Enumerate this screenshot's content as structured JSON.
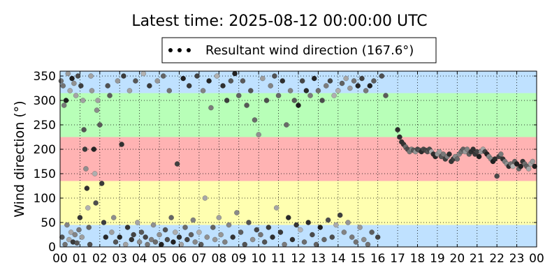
{
  "chart_data": {
    "type": "scatter",
    "title": "Latest time: 2025-08-12 00:00:00 UTC",
    "xlabel": "",
    "ylabel": "Wind direction (°)",
    "x_unit": "hour UTC",
    "xlim": [
      0,
      24
    ],
    "ylim": [
      0,
      360
    ],
    "x_tick_labels": [
      "00",
      "01",
      "02",
      "03",
      "04",
      "05",
      "06",
      "07",
      "08",
      "09",
      "10",
      "11",
      "12",
      "13",
      "14",
      "15",
      "16",
      "17",
      "18",
      "19",
      "20",
      "21",
      "22",
      "23",
      "00"
    ],
    "y_ticks": [
      0,
      50,
      100,
      150,
      200,
      250,
      300,
      350
    ],
    "grid": true,
    "grid_style": "dotted",
    "legend": {
      "label": "Resultant wind direction (167.6°)",
      "placement": "top-center, above plot"
    },
    "direction_bands": [
      {
        "from": 0,
        "to": 45,
        "color": "#bfe1ff"
      },
      {
        "from": 45,
        "to": 135,
        "color": "#ffffb0"
      },
      {
        "from": 135,
        "to": 225,
        "color": "#ffb3b3"
      },
      {
        "from": 225,
        "to": 315,
        "color": "#b8ffb8"
      },
      {
        "from": 315,
        "to": 360,
        "color": "#bfe1ff"
      }
    ],
    "series": [
      {
        "marker_color_range": [
          "#1a1a1a",
          "#b3b3b3"
        ],
        "points": [
          [
            0.05,
            340
          ],
          [
            0.1,
            20
          ],
          [
            0.15,
            330
          ],
          [
            0.2,
            290
          ],
          [
            0.25,
            5
          ],
          [
            0.3,
            300
          ],
          [
            0.35,
            45
          ],
          [
            0.4,
            355
          ],
          [
            0.45,
            15
          ],
          [
            0.5,
            320
          ],
          [
            0.55,
            30
          ],
          [
            0.6,
            345
          ],
          [
            0.65,
            10
          ],
          [
            0.7,
            335
          ],
          [
            0.75,
            25
          ],
          [
            0.8,
            310
          ],
          [
            0.85,
            8
          ],
          [
            0.9,
            350
          ],
          [
            0.95,
            35
          ],
          [
            1.0,
            60
          ],
          [
            1.05,
            330
          ],
          [
            1.1,
            20
          ],
          [
            1.15,
            300
          ],
          [
            1.2,
            240
          ],
          [
            1.25,
            200
          ],
          [
            1.3,
            160
          ],
          [
            1.35,
            120
          ],
          [
            1.4,
            80
          ],
          [
            1.45,
            40
          ],
          [
            1.5,
            5
          ],
          [
            1.55,
            350
          ],
          [
            1.6,
            320
          ],
          [
            1.7,
            200
          ],
          [
            1.75,
            150
          ],
          [
            1.8,
            90
          ],
          [
            1.85,
            280
          ],
          [
            1.9,
            300
          ],
          [
            2.0,
            250
          ],
          [
            2.1,
            130
          ],
          [
            2.2,
            50
          ],
          [
            2.3,
            20
          ],
          [
            2.4,
            330
          ],
          [
            2.5,
            310
          ],
          [
            2.6,
            30
          ],
          [
            2.7,
            60
          ],
          [
            2.8,
            10
          ],
          [
            2.9,
            340
          ],
          [
            3.0,
            20
          ],
          [
            3.1,
            210
          ],
          [
            3.2,
            350
          ],
          [
            3.3,
            5
          ],
          [
            3.4,
            40
          ],
          [
            3.5,
            320
          ],
          [
            3.6,
            15
          ],
          [
            3.7,
            25
          ],
          [
            3.8,
            340
          ],
          [
            3.9,
            50
          ],
          [
            4.0,
            10
          ],
          [
            4.1,
            30
          ],
          [
            4.2,
            355
          ],
          [
            4.3,
            20
          ],
          [
            4.4,
            5
          ],
          [
            4.5,
            330
          ],
          [
            4.6,
            15
          ],
          [
            4.7,
            45
          ],
          [
            4.8,
            10
          ],
          [
            4.9,
            340
          ],
          [
            5.0,
            25
          ],
          [
            5.1,
            5
          ],
          [
            5.2,
            350
          ],
          [
            5.3,
            35
          ],
          [
            5.4,
            15
          ],
          [
            5.5,
            320
          ],
          [
            5.6,
            60
          ],
          [
            5.7,
            10
          ],
          [
            5.8,
            30
          ],
          [
            5.9,
            170
          ],
          [
            6.0,
            20
          ],
          [
            6.1,
            5
          ],
          [
            6.2,
            345
          ],
          [
            6.3,
            40
          ],
          [
            6.4,
            15
          ],
          [
            6.5,
            330
          ],
          [
            6.6,
            25
          ],
          [
            6.7,
            55
          ],
          [
            6.8,
            10
          ],
          [
            6.9,
            350
          ],
          [
            7.0,
            30
          ],
          [
            7.1,
            5
          ],
          [
            7.2,
            320
          ],
          [
            7.3,
            100
          ],
          [
            7.4,
            20
          ],
          [
            7.5,
            340
          ],
          [
            7.6,
            285
          ],
          [
            7.7,
            40
          ],
          [
            7.8,
            15
          ],
          [
            7.9,
            350
          ],
          [
            8.0,
            60
          ],
          [
            8.1,
            25
          ],
          [
            8.2,
            330
          ],
          [
            8.3,
            10
          ],
          [
            8.4,
            300
          ],
          [
            8.5,
            45
          ],
          [
            8.6,
            340
          ],
          [
            8.7,
            20
          ],
          [
            8.8,
            355
          ],
          [
            8.9,
            70
          ],
          [
            9.0,
            310
          ],
          [
            9.1,
            30
          ],
          [
            9.2,
            340
          ],
          [
            9.3,
            5
          ],
          [
            9.4,
            290
          ],
          [
            9.5,
            50
          ],
          [
            9.6,
            320
          ],
          [
            9.7,
            15
          ],
          [
            9.8,
            260
          ],
          [
            9.9,
            35
          ],
          [
            10.0,
            230
          ],
          [
            10.1,
            25
          ],
          [
            10.2,
            345
          ],
          [
            10.3,
            10
          ],
          [
            10.4,
            300
          ],
          [
            10.5,
            40
          ],
          [
            10.6,
            330
          ],
          [
            10.7,
            20
          ],
          [
            10.8,
            350
          ],
          [
            10.9,
            80
          ],
          [
            11.0,
            310
          ],
          [
            11.1,
            30
          ],
          [
            11.2,
            340
          ],
          [
            11.3,
            5
          ],
          [
            11.4,
            250
          ],
          [
            11.5,
            60
          ],
          [
            11.6,
            320
          ],
          [
            11.7,
            15
          ],
          [
            11.8,
            300
          ],
          [
            11.9,
            45
          ],
          [
            12.0,
            290
          ],
          [
            12.1,
            35
          ],
          [
            12.2,
            340
          ],
          [
            12.3,
            10
          ],
          [
            12.4,
            320
          ],
          [
            12.5,
            50
          ],
          [
            12.6,
            310
          ],
          [
            12.7,
            25
          ],
          [
            12.8,
            345
          ],
          [
            12.9,
            5
          ],
          [
            13.0,
            320
          ],
          [
            13.1,
            40
          ],
          [
            13.2,
            300
          ],
          [
            13.3,
            15
          ],
          [
            13.4,
            330
          ],
          [
            13.5,
            55
          ],
          [
            13.6,
            340
          ],
          [
            13.7,
            20
          ],
          [
            13.8,
            310
          ],
          [
            13.9,
            45
          ],
          [
            14.0,
            320
          ],
          [
            14.1,
            65
          ],
          [
            14.2,
            335
          ],
          [
            14.3,
            30
          ],
          [
            14.4,
            345
          ],
          [
            14.5,
            50
          ],
          [
            14.6,
            325
          ],
          [
            14.7,
            20
          ],
          [
            14.8,
            340
          ],
          [
            14.9,
            10
          ],
          [
            15.0,
            330
          ],
          [
            15.1,
            40
          ],
          [
            15.2,
            345
          ],
          [
            15.3,
            15
          ],
          [
            15.4,
            320
          ],
          [
            15.5,
            5
          ],
          [
            15.6,
            330
          ],
          [
            15.7,
            30
          ],
          [
            15.8,
            340
          ],
          [
            16.0,
            20
          ],
          [
            16.2,
            350
          ],
          [
            16.4,
            310
          ],
          [
            17.0,
            240
          ],
          [
            17.1,
            225
          ],
          [
            17.2,
            215
          ],
          [
            17.3,
            210
          ],
          [
            17.4,
            205
          ],
          [
            17.5,
            200
          ],
          [
            17.6,
            195
          ],
          [
            17.7,
            200
          ],
          [
            17.8,
            198
          ],
          [
            17.9,
            195
          ],
          [
            18.0,
            200
          ],
          [
            18.1,
            198
          ],
          [
            18.2,
            195
          ],
          [
            18.3,
            200
          ],
          [
            18.4,
            198
          ],
          [
            18.5,
            195
          ],
          [
            18.6,
            200
          ],
          [
            18.7,
            195
          ],
          [
            18.8,
            190
          ],
          [
            18.9,
            185
          ],
          [
            19.0,
            190
          ],
          [
            19.1,
            195
          ],
          [
            19.2,
            185
          ],
          [
            19.3,
            190
          ],
          [
            19.4,
            180
          ],
          [
            19.5,
            185
          ],
          [
            19.6,
            190
          ],
          [
            19.7,
            175
          ],
          [
            19.8,
            180
          ],
          [
            19.9,
            185
          ],
          [
            20.0,
            180
          ],
          [
            20.1,
            190
          ],
          [
            20.2,
            195
          ],
          [
            20.3,
            200
          ],
          [
            20.4,
            195
          ],
          [
            20.5,
            200
          ],
          [
            20.6,
            190
          ],
          [
            20.7,
            195
          ],
          [
            20.8,
            200
          ],
          [
            20.9,
            190
          ],
          [
            21.0,
            195
          ],
          [
            21.1,
            185
          ],
          [
            21.2,
            195
          ],
          [
            21.3,
            200
          ],
          [
            21.4,
            195
          ],
          [
            21.5,
            190
          ],
          [
            21.6,
            185
          ],
          [
            21.7,
            180
          ],
          [
            21.8,
            175
          ],
          [
            21.9,
            180
          ],
          [
            22.0,
            145
          ],
          [
            22.1,
            185
          ],
          [
            22.2,
            190
          ],
          [
            22.3,
            180
          ],
          [
            22.4,
            175
          ],
          [
            22.5,
            170
          ],
          [
            22.6,
            165
          ],
          [
            22.7,
            170
          ],
          [
            22.8,
            165
          ],
          [
            22.9,
            175
          ],
          [
            23.0,
            170
          ],
          [
            23.1,
            160
          ],
          [
            23.2,
            165
          ],
          [
            23.3,
            175
          ],
          [
            23.4,
            170
          ],
          [
            23.5,
            165
          ],
          [
            23.6,
            160
          ],
          [
            23.7,
            170
          ],
          [
            23.8,
            175
          ],
          [
            23.9,
            165
          ]
        ]
      }
    ]
  }
}
